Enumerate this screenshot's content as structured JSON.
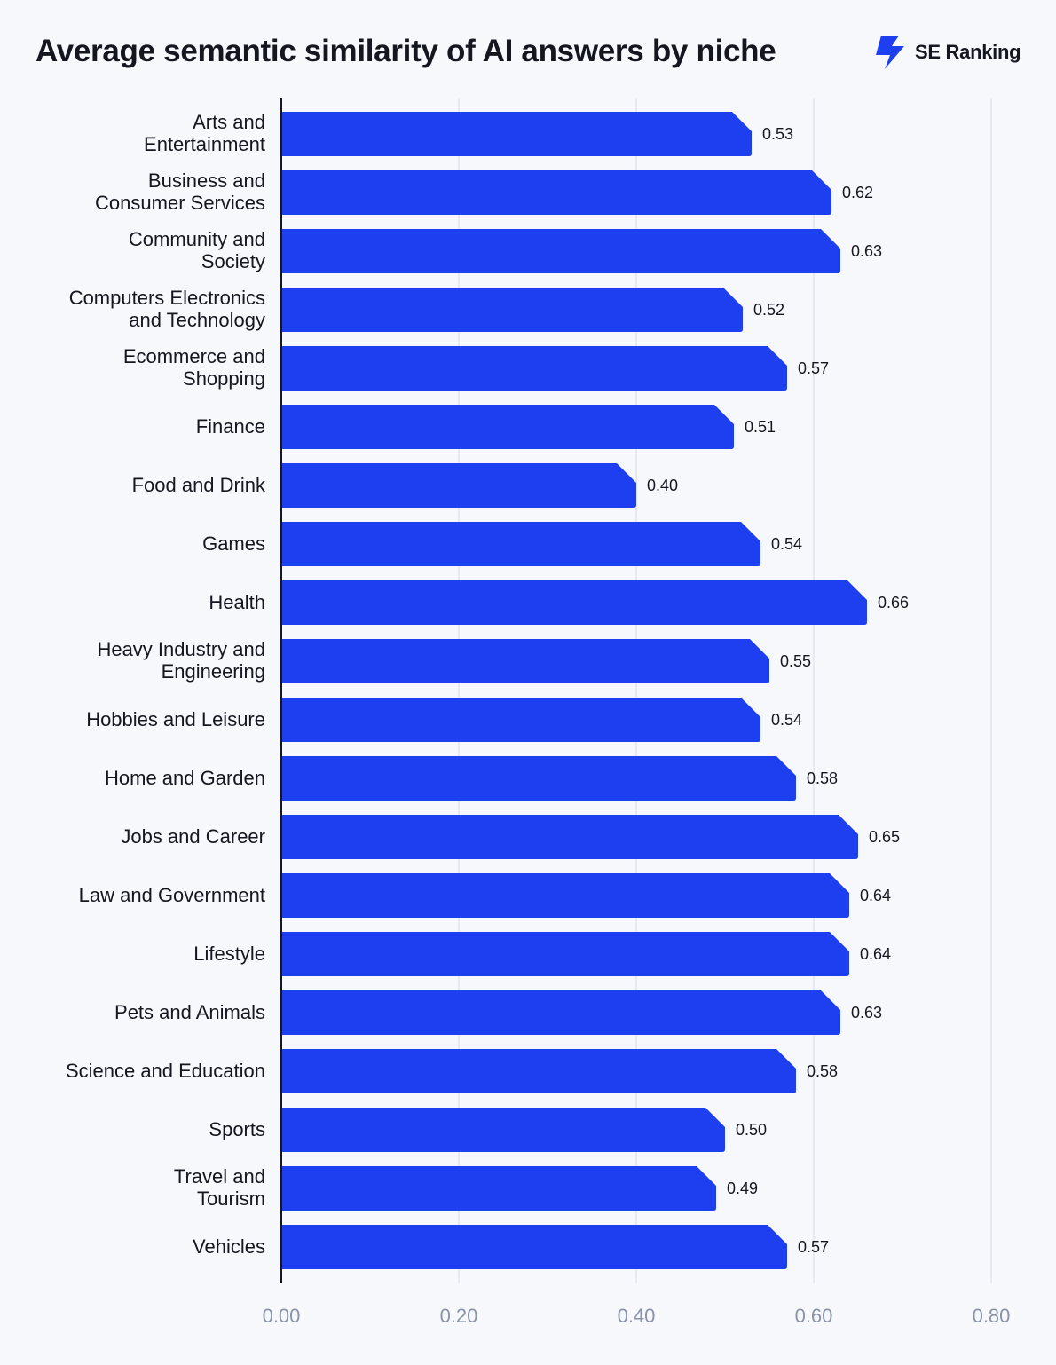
{
  "chart_data": {
    "type": "bar",
    "orientation": "horizontal",
    "title": "Average semantic similarity of AI answers by niche",
    "categories": [
      "Arts and\nEntertainment",
      "Business and\nConsumer Services",
      "Community and\nSociety",
      "Computers Electronics\nand Technology",
      "Ecommerce and\nShopping",
      "Finance",
      "Food and Drink",
      "Games",
      "Health",
      "Heavy Industry and\nEngineering",
      "Hobbies and Leisure",
      "Home and Garden",
      "Jobs and Career",
      "Law and Government",
      "Lifestyle",
      "Pets and Animals",
      "Science and Education",
      "Sports",
      "Travel and\nTourism",
      "Vehicles"
    ],
    "values": [
      0.53,
      0.62,
      0.63,
      0.52,
      0.57,
      0.51,
      0.4,
      0.54,
      0.66,
      0.55,
      0.54,
      0.58,
      0.65,
      0.64,
      0.64,
      0.63,
      0.58,
      0.5,
      0.49,
      0.57
    ],
    "value_labels": [
      "0.53",
      "0.62",
      "0.63",
      "0.52",
      "0.57",
      "0.51",
      "0.40",
      "0.54",
      "0.66",
      "0.55",
      "0.54",
      "0.58",
      "0.65",
      "0.64",
      "0.64",
      "0.63",
      "0.58",
      "0.50",
      "0.49",
      "0.57"
    ],
    "xlim": [
      0,
      0.8
    ],
    "xticks": [
      0,
      0.2,
      0.4,
      0.6,
      0.8
    ],
    "xtick_labels": [
      "0.00",
      "0.20",
      "0.40",
      "0.60",
      "0.80"
    ],
    "grid": "vertical",
    "bar_color": "#1d3ff0",
    "grid_color": "#e3e6ee"
  },
  "brand": {
    "name": "SE Ranking",
    "logo_icon": "lightning-bolt-icon",
    "logo_color": "#1d3ff0"
  }
}
